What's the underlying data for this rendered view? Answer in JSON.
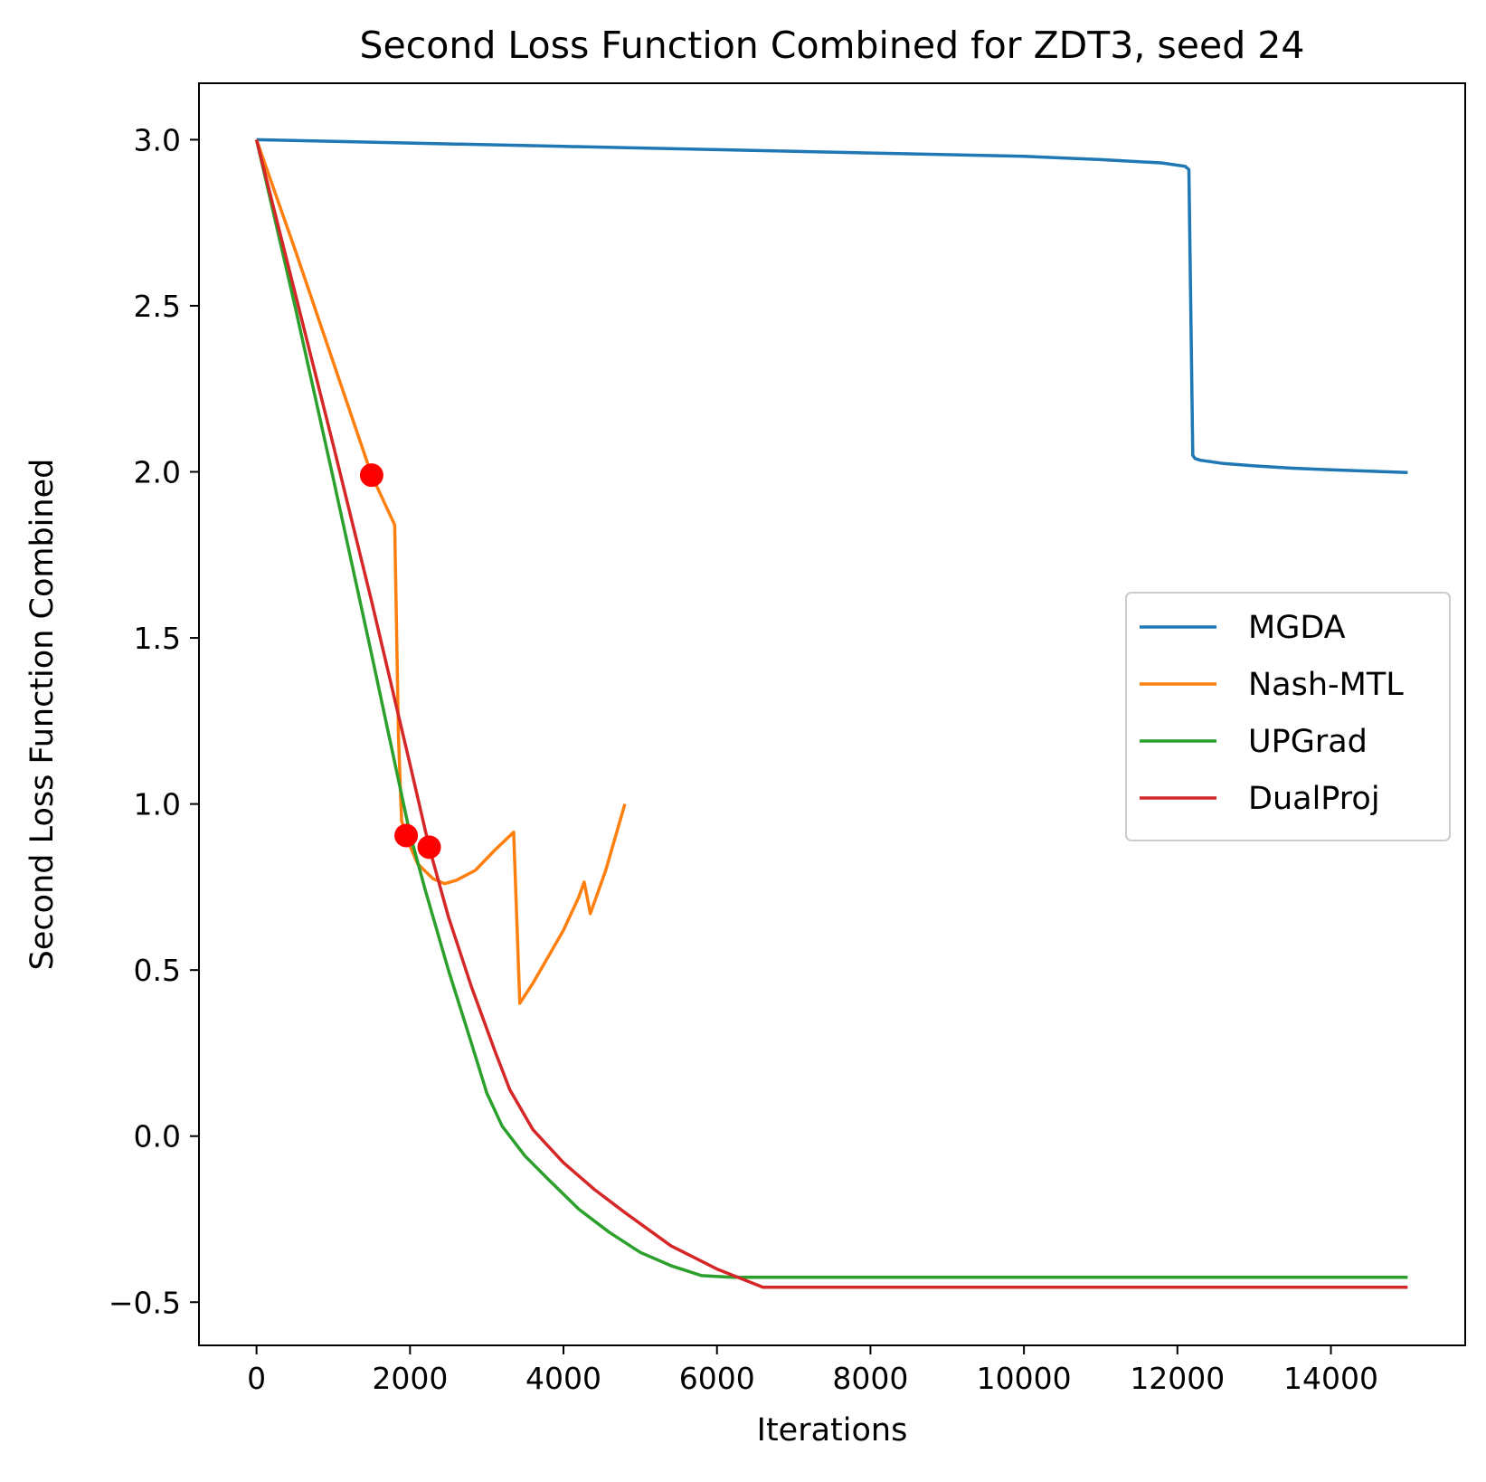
{
  "chart_data": {
    "type": "line",
    "title": "Second Loss Function Combined for ZDT3, seed 24",
    "xlabel": "Iterations",
    "ylabel": "Second Loss Function Combined",
    "xlim": [
      -750,
      15750
    ],
    "ylim": [
      -0.63,
      3.17
    ],
    "xticks": [
      0,
      2000,
      4000,
      6000,
      8000,
      10000,
      12000,
      14000
    ],
    "xtick_labels": [
      "0",
      "2000",
      "4000",
      "6000",
      "8000",
      "10000",
      "12000",
      "14000"
    ],
    "yticks": [
      -0.5,
      0.0,
      0.5,
      1.0,
      1.5,
      2.0,
      2.5,
      3.0
    ],
    "ytick_labels": [
      "−0.5",
      "0.0",
      "0.5",
      "1.0",
      "1.5",
      "2.0",
      "2.5",
      "3.0"
    ],
    "grid": false,
    "legend_position": "center-right",
    "series": [
      {
        "name": "MGDA",
        "color": "#1f77b4",
        "x": [
          0,
          2000,
          4000,
          6000,
          8000,
          10000,
          11000,
          11800,
          12100,
          12150,
          12200,
          12230,
          12300,
          12600,
          13000,
          13500,
          14000,
          14500,
          15000
        ],
        "y": [
          3.0,
          2.99,
          2.98,
          2.97,
          2.96,
          2.95,
          2.94,
          2.93,
          2.92,
          2.91,
          2.05,
          2.04,
          2.035,
          2.025,
          2.018,
          2.011,
          2.006,
          2.002,
          1.998
        ]
      },
      {
        "name": "Nash-MTL",
        "color": "#ff7f0e",
        "x": [
          0,
          500,
          1000,
          1500,
          1800,
          1850,
          1890,
          1950,
          2100,
          2300,
          2450,
          2600,
          2850,
          3100,
          3350,
          3400,
          3430,
          3600,
          3800,
          4000,
          4200,
          4270,
          4350,
          4550,
          4800
        ],
        "y": [
          3.0,
          2.67,
          2.33,
          1.99,
          1.84,
          1.2,
          0.95,
          0.9,
          0.82,
          0.775,
          0.76,
          0.77,
          0.8,
          0.86,
          0.915,
          0.6,
          0.4,
          0.46,
          0.54,
          0.62,
          0.72,
          0.765,
          0.67,
          0.8,
          1.0
        ]
      },
      {
        "name": "UPGrad",
        "color": "#2ca02c",
        "x": [
          0,
          500,
          1000,
          1500,
          2000,
          2200,
          2500,
          2800,
          3000,
          3200,
          3500,
          3800,
          4200,
          4600,
          5000,
          5400,
          5800,
          6200,
          15000
        ],
        "y": [
          3.0,
          2.5,
          1.98,
          1.45,
          0.91,
          0.74,
          0.5,
          0.28,
          0.13,
          0.03,
          -0.06,
          -0.13,
          -0.22,
          -0.29,
          -0.35,
          -0.39,
          -0.42,
          -0.425,
          -0.425
        ]
      },
      {
        "name": "DualProj",
        "color": "#d62728",
        "x": [
          0,
          500,
          1000,
          1500,
          2000,
          2250,
          2500,
          2800,
          3100,
          3300,
          3600,
          4000,
          4400,
          4800,
          5400,
          6000,
          6600,
          15000
        ],
        "y": [
          3.0,
          2.54,
          2.08,
          1.61,
          1.12,
          0.87,
          0.66,
          0.45,
          0.26,
          0.14,
          0.02,
          -0.08,
          -0.16,
          -0.23,
          -0.33,
          -0.4,
          -0.455,
          -0.455
        ]
      }
    ],
    "markers": {
      "color": "#ff0000",
      "points": [
        {
          "x": 1500,
          "y": 1.99
        },
        {
          "x": 1950,
          "y": 0.905
        },
        {
          "x": 2250,
          "y": 0.87
        }
      ]
    }
  }
}
